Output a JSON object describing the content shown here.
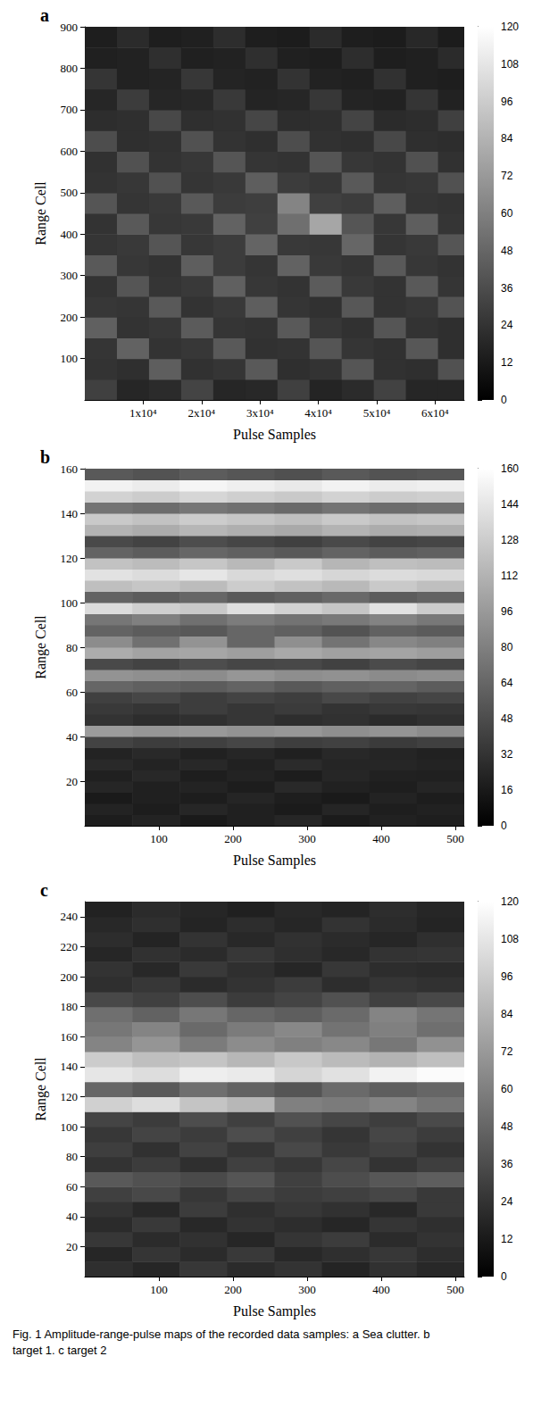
{
  "caption": "Fig. 1 Amplitude-range-pulse maps of the recorded data samples: a Sea clutter. b target 1. c target 2",
  "chart_data": [
    {
      "type": "heatmap",
      "label": "a",
      "xlabel": "Pulse Samples",
      "ylabel": "Range Cell",
      "xlim": [
        0,
        65000
      ],
      "xticks": [
        {
          "value": 10000,
          "label": "1x10⁴"
        },
        {
          "value": 20000,
          "label": "2x10⁴"
        },
        {
          "value": 30000,
          "label": "3x10⁴"
        },
        {
          "value": 40000,
          "label": "4x10⁴"
        },
        {
          "value": 50000,
          "label": "5x10⁴"
        },
        {
          "value": 60000,
          "label": "6x10⁴"
        }
      ],
      "ylim": [
        0,
        900
      ],
      "yticks": [
        100,
        200,
        300,
        400,
        500,
        600,
        700,
        800,
        900
      ],
      "colorbar_range": [
        0,
        120
      ],
      "colorbar_ticks": [
        0,
        12,
        24,
        36,
        48,
        60,
        72,
        84,
        96,
        108,
        120
      ],
      "x_edges": [
        0,
        5500,
        11000,
        16500,
        22000,
        27500,
        33000,
        38500,
        44000,
        49500,
        55000,
        60500,
        65000
      ],
      "y_edges": [
        0,
        50,
        100,
        150,
        200,
        250,
        300,
        350,
        400,
        450,
        500,
        550,
        600,
        650,
        700,
        750,
        800,
        850,
        900
      ],
      "cells": [
        [
          30,
          18,
          20,
          32,
          18,
          19,
          30,
          17,
          20,
          31,
          18,
          18
        ],
        [
          24,
          22,
          44,
          23,
          25,
          42,
          22,
          24,
          40,
          23,
          22,
          38
        ],
        [
          25,
          46,
          24,
          26,
          42,
          23,
          24,
          40,
          25,
          23,
          41,
          22
        ],
        [
          45,
          24,
          26,
          43,
          25,
          24,
          42,
          26,
          23,
          40,
          24,
          22
        ],
        [
          26,
          25,
          42,
          24,
          27,
          44,
          25,
          23,
          41,
          24,
          26,
          39
        ],
        [
          24,
          40,
          25,
          27,
          45,
          26,
          24,
          43,
          27,
          24,
          42,
          25
        ],
        [
          42,
          26,
          24,
          44,
          28,
          25,
          46,
          27,
          25,
          42,
          26,
          24
        ],
        [
          25,
          27,
          40,
          26,
          28,
          47,
          27,
          26,
          48,
          25,
          27,
          40
        ],
        [
          24,
          42,
          26,
          27,
          46,
          30,
          52,
          78,
          40,
          26,
          44,
          25
        ],
        [
          40,
          25,
          27,
          42,
          28,
          29,
          62,
          30,
          28,
          44,
          25,
          24
        ],
        [
          24,
          26,
          38,
          25,
          27,
          44,
          28,
          26,
          42,
          25,
          26,
          38
        ],
        [
          23,
          38,
          24,
          26,
          40,
          25,
          24,
          40,
          26,
          24,
          38,
          23
        ],
        [
          36,
          22,
          23,
          38,
          24,
          22,
          36,
          23,
          22,
          34,
          22,
          21
        ],
        [
          21,
          22,
          34,
          22,
          23,
          33,
          21,
          22,
          32,
          20,
          21,
          30
        ],
        [
          18,
          28,
          18,
          19,
          27,
          17,
          18,
          26,
          17,
          16,
          25,
          16
        ],
        [
          25,
          16,
          17,
          26,
          17,
          16,
          24,
          16,
          15,
          23,
          15,
          14
        ],
        [
          15,
          16,
          22,
          15,
          16,
          22,
          15,
          14,
          21,
          14,
          15,
          20
        ],
        [
          14,
          20,
          14,
          15,
          21,
          14,
          13,
          20,
          14,
          13,
          19,
          13
        ]
      ]
    },
    {
      "type": "heatmap",
      "label": "b",
      "xlabel": "Pulse Samples",
      "ylabel": "Range Cell",
      "xlim": [
        0,
        512
      ],
      "xticks": [
        100,
        200,
        300,
        400,
        500
      ],
      "ylim": [
        0,
        160
      ],
      "yticks": [
        20,
        40,
        60,
        80,
        100,
        120,
        140,
        160
      ],
      "colorbar_range": [
        0,
        160
      ],
      "colorbar_ticks": [
        0,
        16,
        32,
        48,
        64,
        80,
        96,
        112,
        128,
        144,
        160
      ],
      "x_edges": [
        0,
        64,
        128,
        192,
        256,
        320,
        384,
        448,
        512
      ],
      "y_edges": [
        0,
        5,
        10,
        15,
        20,
        25,
        30,
        35,
        40,
        45,
        50,
        55,
        60,
        65,
        70,
        75,
        80,
        85,
        90,
        95,
        100,
        105,
        110,
        115,
        120,
        125,
        130,
        135,
        140,
        145,
        150,
        155,
        160
      ],
      "cells": [
        [
          18,
          22,
          16,
          20,
          24,
          17,
          21,
          19
        ],
        [
          22,
          18,
          24,
          20,
          17,
          23,
          19,
          21
        ],
        [
          16,
          20,
          18,
          23,
          19,
          16,
          22,
          18
        ],
        [
          24,
          20,
          22,
          18,
          26,
          21,
          19,
          23
        ],
        [
          20,
          25,
          19,
          22,
          18,
          24,
          21,
          20
        ],
        [
          26,
          22,
          25,
          21,
          27,
          23,
          24,
          22
        ],
        [
          22,
          26,
          21,
          24,
          20,
          25,
          23,
          21
        ],
        [
          42,
          38,
          40,
          44,
          39,
          41,
          37,
          40
        ],
        [
          98,
          94,
          96,
          92,
          95,
          90,
          93,
          88
        ],
        [
          32,
          28,
          30,
          34,
          29,
          31,
          27,
          30
        ],
        [
          36,
          33,
          38,
          34,
          37,
          32,
          35,
          34
        ],
        [
          40,
          44,
          38,
          42,
          39,
          45,
          41,
          43
        ],
        [
          64,
          60,
          58,
          62,
          56,
          60,
          63,
          58
        ],
        [
          92,
          90,
          88,
          94,
          89,
          91,
          87,
          90
        ],
        [
          46,
          42,
          48,
          44,
          45,
          41,
          47,
          43
        ],
        [
          108,
          102,
          104,
          100,
          106,
          101,
          103,
          99
        ],
        [
          88,
          70,
          92,
          64,
          90,
          72,
          85,
          80
        ],
        [
          62,
          58,
          55,
          64,
          60,
          52,
          61,
          57
        ],
        [
          74,
          80,
          70,
          78,
          72,
          76,
          82,
          75
        ],
        [
          138,
          130,
          126,
          140,
          132,
          124,
          142,
          128
        ],
        [
          62,
          58,
          64,
          56,
          60,
          66,
          58,
          62
        ],
        [
          120,
          124,
          118,
          128,
          122,
          116,
          126,
          120
        ],
        [
          142,
          138,
          144,
          136,
          140,
          134,
          138,
          136
        ],
        [
          122,
          118,
          124,
          116,
          126,
          114,
          120,
          118
        ],
        [
          62,
          58,
          64,
          60,
          56,
          62,
          58,
          60
        ],
        [
          46,
          42,
          48,
          44,
          40,
          46,
          42,
          44
        ],
        [
          112,
          108,
          114,
          110,
          106,
          112,
          108,
          110
        ],
        [
          126,
          122,
          128,
          124,
          120,
          126,
          122,
          124
        ],
        [
          72,
          68,
          74,
          70,
          66,
          72,
          68,
          70
        ],
        [
          132,
          128,
          134,
          130,
          126,
          132,
          128,
          130
        ],
        [
          152,
          148,
          154,
          150,
          146,
          152,
          148,
          150
        ],
        [
          56,
          52,
          58,
          54,
          50,
          56,
          52,
          54
        ]
      ]
    },
    {
      "type": "heatmap",
      "label": "c",
      "xlabel": "Pulse Samples",
      "ylabel": "Range Cell",
      "xlim": [
        0,
        512
      ],
      "xticks": [
        100,
        200,
        300,
        400,
        500
      ],
      "ylim": [
        0,
        250
      ],
      "yticks": [
        20,
        40,
        60,
        80,
        100,
        120,
        140,
        160,
        180,
        200,
        220,
        240
      ],
      "colorbar_range": [
        0,
        120
      ],
      "colorbar_ticks": [
        0,
        12,
        24,
        36,
        48,
        60,
        72,
        84,
        96,
        108,
        120
      ],
      "x_edges": [
        0,
        64,
        128,
        192,
        256,
        320,
        384,
        448,
        512
      ],
      "y_edges": [
        0,
        10,
        20,
        30,
        40,
        50,
        60,
        70,
        80,
        90,
        100,
        110,
        120,
        130,
        140,
        150,
        160,
        170,
        180,
        190,
        200,
        210,
        220,
        230,
        240,
        250
      ],
      "cells": [
        [
          22,
          18,
          26,
          20,
          24,
          17,
          23,
          19
        ],
        [
          18,
          25,
          20,
          27,
          19,
          22,
          26,
          21
        ],
        [
          26,
          20,
          23,
          18,
          25,
          28,
          20,
          24
        ],
        [
          20,
          27,
          19,
          24,
          21,
          18,
          25,
          22
        ],
        [
          24,
          19,
          28,
          22,
          26,
          23,
          19,
          27
        ],
        [
          30,
          34,
          26,
          32,
          28,
          30,
          33,
          27
        ],
        [
          42,
          38,
          35,
          40,
          30,
          36,
          41,
          44
        ],
        [
          24,
          28,
          22,
          30,
          26,
          33,
          24,
          29
        ],
        [
          29,
          23,
          31,
          25,
          34,
          27,
          30,
          24
        ],
        [
          26,
          32,
          28,
          36,
          30,
          25,
          33,
          28
        ],
        [
          32,
          28,
          36,
          30,
          38,
          33,
          29,
          35
        ],
        [
          98,
          104,
          92,
          86,
          60,
          58,
          62,
          55
        ],
        [
          48,
          42,
          52,
          46,
          40,
          50,
          44,
          48
        ],
        [
          108,
          104,
          112,
          110,
          100,
          106,
          114,
          118
        ],
        [
          96,
          90,
          92,
          86,
          94,
          88,
          84,
          90
        ],
        [
          62,
          70,
          58,
          66,
          60,
          64,
          56,
          68
        ],
        [
          56,
          62,
          50,
          58,
          64,
          54,
          60,
          52
        ],
        [
          52,
          46,
          56,
          48,
          44,
          50,
          62,
          55
        ],
        [
          34,
          30,
          36,
          28,
          32,
          38,
          30,
          34
        ],
        [
          22,
          26,
          20,
          24,
          28,
          21,
          25,
          23
        ],
        [
          24,
          19,
          27,
          22,
          18,
          26,
          21,
          20
        ],
        [
          18,
          23,
          20,
          26,
          22,
          19,
          24,
          25
        ],
        [
          21,
          17,
          24,
          19,
          23,
          20,
          18,
          22
        ],
        [
          19,
          22,
          17,
          21,
          18,
          24,
          20,
          17
        ],
        [
          16,
          20,
          18,
          15,
          19,
          17,
          21,
          18
        ]
      ]
    }
  ]
}
